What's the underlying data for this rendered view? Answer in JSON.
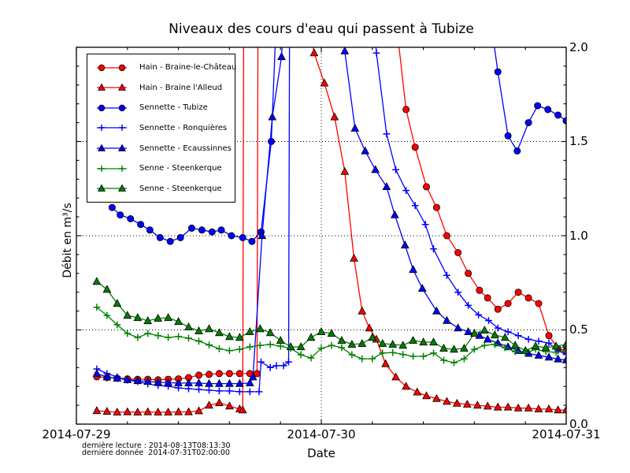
{
  "title": "Niveaux des cours d'eau qui passent à Tubize",
  "xlabel": "Date",
  "ylabel": "Débit en m³/s",
  "annotations": {
    "line1": "dernière lecture : 2014-08-13T08:13:30",
    "line2": "dernière donnée  2014-07-31T02:00:00"
  },
  "x_tick_labels": [
    "2014-07-29",
    "2014-07-30",
    "2014-07-31"
  ],
  "y_tick_labels": [
    "0.0",
    "0.5",
    "1.0",
    "1.5",
    "2.0"
  ],
  "chart_data": {
    "type": "line",
    "title": "Niveaux des cours d'eau qui passent à Tubize",
    "xlabel": "Date",
    "ylabel": "Débit en m³/s",
    "x_unit": "hours since 2014-07-29 00:00",
    "xlim": [
      0,
      48
    ],
    "ylim": [
      0,
      2.0
    ],
    "off_scale_note": "values recorded as 2.3 exit the top of the axes (clipped above 2.0)",
    "x_major_ticks_hours": [
      0,
      24,
      48
    ],
    "x_minor_ticks_hours": [
      5,
      10,
      15,
      20,
      29,
      34,
      39,
      44
    ],
    "y_major_ticks": [
      0,
      0.5,
      1.0,
      1.5,
      2.0
    ],
    "y_minor_step": 0.1,
    "grid": {
      "horizontal_at": [
        0.5,
        1.0,
        1.5
      ],
      "vertical_at_hours": [
        24
      ],
      "style": "dotted"
    },
    "legend_position": "upper-left",
    "series": [
      {
        "name": "Hain - Braine-le-Château",
        "color": "#ff0000",
        "marker": "circle",
        "points": [
          [
            2,
            0.251
          ],
          [
            3,
            0.247
          ],
          [
            4,
            0.243
          ],
          [
            5,
            0.24
          ],
          [
            6,
            0.238
          ],
          [
            7,
            0.238
          ],
          [
            8,
            0.235
          ],
          [
            9,
            0.238
          ],
          [
            10,
            0.24
          ],
          [
            11,
            0.247
          ],
          [
            12,
            0.26
          ],
          [
            13,
            0.264
          ],
          [
            14,
            0.268
          ],
          [
            15,
            0.268
          ],
          [
            16,
            0.268
          ],
          [
            17,
            0.268
          ],
          [
            17.7,
            0.268
          ],
          [
            17.8,
            2.3
          ],
          [
            31,
            2.3
          ],
          [
            32.3,
            1.67
          ],
          [
            33.2,
            1.47
          ],
          [
            34.3,
            1.26
          ],
          [
            35.3,
            1.15
          ],
          [
            36.3,
            1.0
          ],
          [
            37.4,
            0.91
          ],
          [
            38.4,
            0.8
          ],
          [
            39.5,
            0.71
          ],
          [
            40.3,
            0.67
          ],
          [
            41.3,
            0.61
          ],
          [
            42.3,
            0.64
          ],
          [
            43.3,
            0.7
          ],
          [
            44.3,
            0.67
          ],
          [
            45.3,
            0.64
          ],
          [
            46.3,
            0.47
          ],
          [
            47.2,
            0.4
          ],
          [
            48,
            0.39
          ]
        ]
      },
      {
        "name": "Hain - Braine l'Alleud",
        "color": "#ff0000",
        "marker": "triangle",
        "points": [
          [
            2,
            0.071
          ],
          [
            3,
            0.067
          ],
          [
            4,
            0.063
          ],
          [
            5,
            0.065
          ],
          [
            6,
            0.063
          ],
          [
            7,
            0.065
          ],
          [
            8,
            0.063
          ],
          [
            9,
            0.063
          ],
          [
            10,
            0.065
          ],
          [
            11,
            0.065
          ],
          [
            12,
            0.07
          ],
          [
            13,
            0.1
          ],
          [
            14,
            0.113
          ],
          [
            15,
            0.096
          ],
          [
            16,
            0.08
          ],
          [
            16.3,
            0.075
          ],
          [
            16.4,
            2.3
          ],
          [
            22.3,
            2.3
          ],
          [
            23.3,
            1.97
          ],
          [
            24.3,
            1.81
          ],
          [
            25.3,
            1.63
          ],
          [
            26.3,
            1.34
          ],
          [
            27.2,
            0.88
          ],
          [
            28,
            0.6
          ],
          [
            28.7,
            0.51
          ],
          [
            29.4,
            0.45
          ],
          [
            30.3,
            0.32
          ],
          [
            31.3,
            0.25
          ],
          [
            32.3,
            0.2
          ],
          [
            33.4,
            0.17
          ],
          [
            34.3,
            0.15
          ],
          [
            35.3,
            0.135
          ],
          [
            36.3,
            0.12
          ],
          [
            37.3,
            0.11
          ],
          [
            38.3,
            0.105
          ],
          [
            39.3,
            0.1
          ],
          [
            40.3,
            0.095
          ],
          [
            41.3,
            0.09
          ],
          [
            42.3,
            0.09
          ],
          [
            43.3,
            0.085
          ],
          [
            44.3,
            0.085
          ],
          [
            45.3,
            0.08
          ],
          [
            46.3,
            0.08
          ],
          [
            47.2,
            0.075
          ],
          [
            48,
            0.075
          ]
        ]
      },
      {
        "name": "Sennette - Tubize",
        "color": "#0000ff",
        "marker": "circle",
        "points": [
          [
            3.5,
            1.15
          ],
          [
            4.3,
            1.11
          ],
          [
            5.3,
            1.09
          ],
          [
            6.3,
            1.06
          ],
          [
            7.2,
            1.03
          ],
          [
            8.2,
            0.99
          ],
          [
            9.2,
            0.97
          ],
          [
            10.2,
            0.99
          ],
          [
            11.3,
            1.04
          ],
          [
            12.3,
            1.03
          ],
          [
            13.3,
            1.02
          ],
          [
            14.2,
            1.03
          ],
          [
            15.2,
            1.0
          ],
          [
            16.3,
            0.99
          ],
          [
            17.2,
            0.97
          ],
          [
            18.1,
            1.02
          ],
          [
            19.1,
            1.5
          ],
          [
            19.7,
            2.3
          ],
          [
            40.2,
            2.3
          ],
          [
            41.3,
            1.87
          ],
          [
            42.3,
            1.53
          ],
          [
            43.2,
            1.45
          ],
          [
            44.3,
            1.6
          ],
          [
            45.2,
            1.69
          ],
          [
            46.2,
            1.67
          ],
          [
            47.2,
            1.64
          ],
          [
            48,
            1.61
          ]
        ]
      },
      {
        "name": "Sennette - Ronquières",
        "color": "#0000ff",
        "marker": "plus",
        "points": [
          [
            2,
            0.293
          ],
          [
            3,
            0.268
          ],
          [
            4,
            0.251
          ],
          [
            5,
            0.234
          ],
          [
            6,
            0.226
          ],
          [
            7,
            0.213
          ],
          [
            8,
            0.205
          ],
          [
            9,
            0.201
          ],
          [
            10,
            0.192
          ],
          [
            11,
            0.188
          ],
          [
            12,
            0.184
          ],
          [
            13,
            0.18
          ],
          [
            14,
            0.176
          ],
          [
            15,
            0.176
          ],
          [
            16,
            0.172
          ],
          [
            17,
            0.172
          ],
          [
            17.9,
            0.172
          ],
          [
            18.1,
            0.33
          ],
          [
            19,
            0.3
          ],
          [
            19.6,
            0.31
          ],
          [
            20.3,
            0.31
          ],
          [
            20.8,
            0.33
          ],
          [
            20.9,
            2.3
          ],
          [
            28.9,
            2.3
          ],
          [
            29.4,
            1.97
          ],
          [
            30.4,
            1.54
          ],
          [
            31.3,
            1.35
          ],
          [
            32.3,
            1.24
          ],
          [
            33.2,
            1.16
          ],
          [
            34.2,
            1.06
          ],
          [
            35,
            0.93
          ],
          [
            36.3,
            0.79
          ],
          [
            37.4,
            0.7
          ],
          [
            38.4,
            0.63
          ],
          [
            39.4,
            0.58
          ],
          [
            40.4,
            0.55
          ],
          [
            41.3,
            0.51
          ],
          [
            42.3,
            0.49
          ],
          [
            43.3,
            0.47
          ],
          [
            44.3,
            0.45
          ],
          [
            45.3,
            0.44
          ],
          [
            46.3,
            0.43
          ],
          [
            47.2,
            0.39
          ],
          [
            48,
            0.37
          ]
        ]
      },
      {
        "name": "Sennette - Ecaussinnes",
        "color": "#0000ff",
        "marker": "triangle",
        "points": [
          [
            2,
            0.268
          ],
          [
            3,
            0.25
          ],
          [
            4,
            0.243
          ],
          [
            5,
            0.235
          ],
          [
            6,
            0.23
          ],
          [
            7,
            0.226
          ],
          [
            8,
            0.222
          ],
          [
            9,
            0.22
          ],
          [
            10,
            0.218
          ],
          [
            11,
            0.218
          ],
          [
            12,
            0.218
          ],
          [
            13,
            0.215
          ],
          [
            14,
            0.215
          ],
          [
            15,
            0.215
          ],
          [
            16,
            0.215
          ],
          [
            17,
            0.218
          ],
          [
            17.3,
            0.25
          ],
          [
            18.2,
            1.0
          ],
          [
            19.2,
            1.63
          ],
          [
            20.1,
            1.95
          ],
          [
            20.5,
            2.3
          ],
          [
            25.9,
            2.3
          ],
          [
            26.3,
            1.98
          ],
          [
            27.3,
            1.57
          ],
          [
            28.3,
            1.45
          ],
          [
            29.3,
            1.35
          ],
          [
            30.4,
            1.26
          ],
          [
            31.2,
            1.11
          ],
          [
            32.2,
            0.95
          ],
          [
            33,
            0.82
          ],
          [
            33.9,
            0.72
          ],
          [
            35.3,
            0.6
          ],
          [
            36.3,
            0.55
          ],
          [
            37.4,
            0.51
          ],
          [
            38.4,
            0.49
          ],
          [
            39.5,
            0.47
          ],
          [
            40.3,
            0.45
          ],
          [
            41.3,
            0.43
          ],
          [
            42.3,
            0.41
          ],
          [
            43.3,
            0.39
          ],
          [
            44.3,
            0.375
          ],
          [
            45.3,
            0.365
          ],
          [
            46.3,
            0.355
          ],
          [
            47.2,
            0.345
          ],
          [
            48,
            0.34
          ]
        ]
      },
      {
        "name": "Senne - Steenkerque",
        "color": "#008000",
        "marker": "plus",
        "points": [
          [
            2,
            0.62
          ],
          [
            3,
            0.577
          ],
          [
            4,
            0.527
          ],
          [
            5,
            0.481
          ],
          [
            6,
            0.46
          ],
          [
            7,
            0.481
          ],
          [
            8,
            0.47
          ],
          [
            9,
            0.46
          ],
          [
            10,
            0.465
          ],
          [
            11,
            0.456
          ],
          [
            12,
            0.44
          ],
          [
            13,
            0.42
          ],
          [
            14,
            0.4
          ],
          [
            15,
            0.39
          ],
          [
            16,
            0.397
          ],
          [
            17,
            0.41
          ],
          [
            18,
            0.418
          ],
          [
            19,
            0.423
          ],
          [
            20,
            0.414
          ],
          [
            21,
            0.402
          ],
          [
            22,
            0.368
          ],
          [
            23,
            0.351
          ],
          [
            24,
            0.402
          ],
          [
            25,
            0.418
          ],
          [
            26,
            0.406
          ],
          [
            27,
            0.368
          ],
          [
            28,
            0.347
          ],
          [
            29,
            0.347
          ],
          [
            30,
            0.377
          ],
          [
            31,
            0.38
          ],
          [
            32,
            0.37
          ],
          [
            33,
            0.36
          ],
          [
            34,
            0.36
          ],
          [
            35,
            0.377
          ],
          [
            36,
            0.339
          ],
          [
            37,
            0.326
          ],
          [
            38,
            0.347
          ],
          [
            39,
            0.397
          ],
          [
            40,
            0.418
          ],
          [
            41,
            0.423
          ],
          [
            42,
            0.406
          ],
          [
            43,
            0.385
          ],
          [
            44,
            0.377
          ],
          [
            45,
            0.397
          ],
          [
            46,
            0.385
          ],
          [
            47,
            0.381
          ],
          [
            48,
            0.39
          ]
        ]
      },
      {
        "name": "Senne - Steenkerque",
        "color": "#008000",
        "marker": "triangle",
        "points": [
          [
            2,
            0.757
          ],
          [
            3,
            0.715
          ],
          [
            4,
            0.64
          ],
          [
            5,
            0.577
          ],
          [
            6,
            0.565
          ],
          [
            7,
            0.548
          ],
          [
            8,
            0.561
          ],
          [
            9,
            0.565
          ],
          [
            10,
            0.544
          ],
          [
            11,
            0.515
          ],
          [
            12,
            0.494
          ],
          [
            13,
            0.506
          ],
          [
            14,
            0.485
          ],
          [
            15,
            0.464
          ],
          [
            16,
            0.46
          ],
          [
            17,
            0.49
          ],
          [
            18,
            0.506
          ],
          [
            19,
            0.485
          ],
          [
            20,
            0.444
          ],
          [
            21,
            0.41
          ],
          [
            22,
            0.41
          ],
          [
            23,
            0.46
          ],
          [
            24,
            0.49
          ],
          [
            25,
            0.481
          ],
          [
            26,
            0.444
          ],
          [
            27,
            0.423
          ],
          [
            28,
            0.427
          ],
          [
            29,
            0.46
          ],
          [
            30,
            0.427
          ],
          [
            31,
            0.423
          ],
          [
            32,
            0.418
          ],
          [
            33,
            0.444
          ],
          [
            34,
            0.435
          ],
          [
            35,
            0.435
          ],
          [
            36,
            0.402
          ],
          [
            37,
            0.397
          ],
          [
            38,
            0.402
          ],
          [
            39,
            0.481
          ],
          [
            40,
            0.498
          ],
          [
            41,
            0.473
          ],
          [
            42,
            0.46
          ],
          [
            43,
            0.418
          ],
          [
            44,
            0.39
          ],
          [
            45,
            0.414
          ],
          [
            46,
            0.406
          ],
          [
            47,
            0.414
          ],
          [
            48,
            0.423
          ]
        ]
      }
    ]
  }
}
